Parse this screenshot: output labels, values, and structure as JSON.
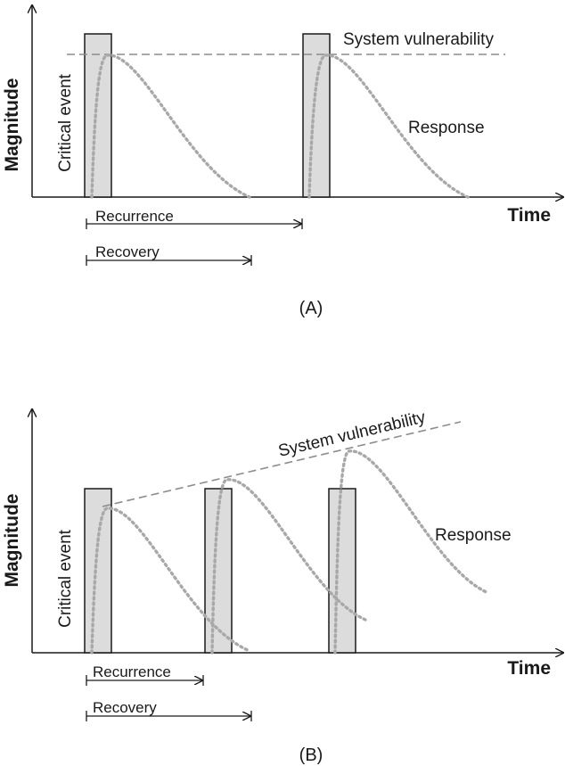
{
  "panels": [
    {
      "id": "A",
      "panel_label": "(A)",
      "y_axis_label": "Magnitude",
      "x_axis_label": "Time",
      "event_label": "Critical event",
      "vulnerability_label": "System vulnerability",
      "response_label": "Response",
      "recurrence_label": "Recurrence",
      "recovery_label": "Recovery",
      "vulnerability_trend": "constant"
    },
    {
      "id": "B",
      "panel_label": "(B)",
      "y_axis_label": "Magnitude",
      "x_axis_label": "Time",
      "event_label": "Critical event",
      "vulnerability_label": "System vulnerability",
      "response_label": "Response",
      "recurrence_label": "Recurrence",
      "recovery_label": "Recovery",
      "vulnerability_trend": "increasing"
    }
  ],
  "colors": {
    "axis": "#1a1a1a",
    "event_fill": "#dcdcdc",
    "vulnerability_line": "#8c8c8c",
    "response_line": "#a8a8a8"
  }
}
